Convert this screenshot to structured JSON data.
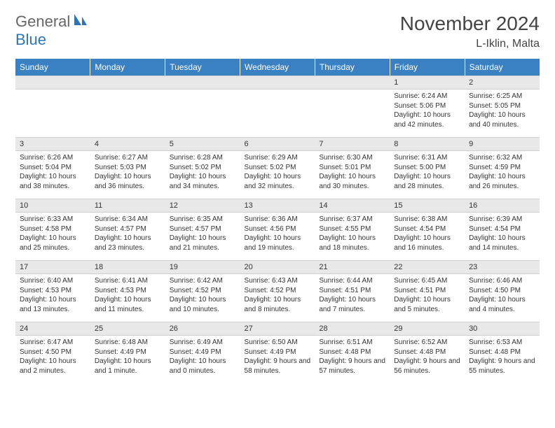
{
  "logo": {
    "text_general": "General",
    "text_blue": "Blue"
  },
  "header": {
    "month_title": "November 2024",
    "location": "L-Iklin, Malta"
  },
  "colors": {
    "header_bg": "#3a81c4",
    "header_text": "#ffffff",
    "daybar_bg": "#e8e8e8",
    "daybar_border": "#cfcfcf",
    "body_text": "#333333",
    "logo_blue": "#2f75b5",
    "page_bg": "#ffffff"
  },
  "weekdays": [
    "Sunday",
    "Monday",
    "Tuesday",
    "Wednesday",
    "Thursday",
    "Friday",
    "Saturday"
  ],
  "weeks": [
    [
      {
        "num": "",
        "sunrise": "",
        "sunset": "",
        "daylight": ""
      },
      {
        "num": "",
        "sunrise": "",
        "sunset": "",
        "daylight": ""
      },
      {
        "num": "",
        "sunrise": "",
        "sunset": "",
        "daylight": ""
      },
      {
        "num": "",
        "sunrise": "",
        "sunset": "",
        "daylight": ""
      },
      {
        "num": "",
        "sunrise": "",
        "sunset": "",
        "daylight": ""
      },
      {
        "num": "1",
        "sunrise": "Sunrise: 6:24 AM",
        "sunset": "Sunset: 5:06 PM",
        "daylight": "Daylight: 10 hours and 42 minutes."
      },
      {
        "num": "2",
        "sunrise": "Sunrise: 6:25 AM",
        "sunset": "Sunset: 5:05 PM",
        "daylight": "Daylight: 10 hours and 40 minutes."
      }
    ],
    [
      {
        "num": "3",
        "sunrise": "Sunrise: 6:26 AM",
        "sunset": "Sunset: 5:04 PM",
        "daylight": "Daylight: 10 hours and 38 minutes."
      },
      {
        "num": "4",
        "sunrise": "Sunrise: 6:27 AM",
        "sunset": "Sunset: 5:03 PM",
        "daylight": "Daylight: 10 hours and 36 minutes."
      },
      {
        "num": "5",
        "sunrise": "Sunrise: 6:28 AM",
        "sunset": "Sunset: 5:02 PM",
        "daylight": "Daylight: 10 hours and 34 minutes."
      },
      {
        "num": "6",
        "sunrise": "Sunrise: 6:29 AM",
        "sunset": "Sunset: 5:02 PM",
        "daylight": "Daylight: 10 hours and 32 minutes."
      },
      {
        "num": "7",
        "sunrise": "Sunrise: 6:30 AM",
        "sunset": "Sunset: 5:01 PM",
        "daylight": "Daylight: 10 hours and 30 minutes."
      },
      {
        "num": "8",
        "sunrise": "Sunrise: 6:31 AM",
        "sunset": "Sunset: 5:00 PM",
        "daylight": "Daylight: 10 hours and 28 minutes."
      },
      {
        "num": "9",
        "sunrise": "Sunrise: 6:32 AM",
        "sunset": "Sunset: 4:59 PM",
        "daylight": "Daylight: 10 hours and 26 minutes."
      }
    ],
    [
      {
        "num": "10",
        "sunrise": "Sunrise: 6:33 AM",
        "sunset": "Sunset: 4:58 PM",
        "daylight": "Daylight: 10 hours and 25 minutes."
      },
      {
        "num": "11",
        "sunrise": "Sunrise: 6:34 AM",
        "sunset": "Sunset: 4:57 PM",
        "daylight": "Daylight: 10 hours and 23 minutes."
      },
      {
        "num": "12",
        "sunrise": "Sunrise: 6:35 AM",
        "sunset": "Sunset: 4:57 PM",
        "daylight": "Daylight: 10 hours and 21 minutes."
      },
      {
        "num": "13",
        "sunrise": "Sunrise: 6:36 AM",
        "sunset": "Sunset: 4:56 PM",
        "daylight": "Daylight: 10 hours and 19 minutes."
      },
      {
        "num": "14",
        "sunrise": "Sunrise: 6:37 AM",
        "sunset": "Sunset: 4:55 PM",
        "daylight": "Daylight: 10 hours and 18 minutes."
      },
      {
        "num": "15",
        "sunrise": "Sunrise: 6:38 AM",
        "sunset": "Sunset: 4:54 PM",
        "daylight": "Daylight: 10 hours and 16 minutes."
      },
      {
        "num": "16",
        "sunrise": "Sunrise: 6:39 AM",
        "sunset": "Sunset: 4:54 PM",
        "daylight": "Daylight: 10 hours and 14 minutes."
      }
    ],
    [
      {
        "num": "17",
        "sunrise": "Sunrise: 6:40 AM",
        "sunset": "Sunset: 4:53 PM",
        "daylight": "Daylight: 10 hours and 13 minutes."
      },
      {
        "num": "18",
        "sunrise": "Sunrise: 6:41 AM",
        "sunset": "Sunset: 4:53 PM",
        "daylight": "Daylight: 10 hours and 11 minutes."
      },
      {
        "num": "19",
        "sunrise": "Sunrise: 6:42 AM",
        "sunset": "Sunset: 4:52 PM",
        "daylight": "Daylight: 10 hours and 10 minutes."
      },
      {
        "num": "20",
        "sunrise": "Sunrise: 6:43 AM",
        "sunset": "Sunset: 4:52 PM",
        "daylight": "Daylight: 10 hours and 8 minutes."
      },
      {
        "num": "21",
        "sunrise": "Sunrise: 6:44 AM",
        "sunset": "Sunset: 4:51 PM",
        "daylight": "Daylight: 10 hours and 7 minutes."
      },
      {
        "num": "22",
        "sunrise": "Sunrise: 6:45 AM",
        "sunset": "Sunset: 4:51 PM",
        "daylight": "Daylight: 10 hours and 5 minutes."
      },
      {
        "num": "23",
        "sunrise": "Sunrise: 6:46 AM",
        "sunset": "Sunset: 4:50 PM",
        "daylight": "Daylight: 10 hours and 4 minutes."
      }
    ],
    [
      {
        "num": "24",
        "sunrise": "Sunrise: 6:47 AM",
        "sunset": "Sunset: 4:50 PM",
        "daylight": "Daylight: 10 hours and 2 minutes."
      },
      {
        "num": "25",
        "sunrise": "Sunrise: 6:48 AM",
        "sunset": "Sunset: 4:49 PM",
        "daylight": "Daylight: 10 hours and 1 minute."
      },
      {
        "num": "26",
        "sunrise": "Sunrise: 6:49 AM",
        "sunset": "Sunset: 4:49 PM",
        "daylight": "Daylight: 10 hours and 0 minutes."
      },
      {
        "num": "27",
        "sunrise": "Sunrise: 6:50 AM",
        "sunset": "Sunset: 4:49 PM",
        "daylight": "Daylight: 9 hours and 58 minutes."
      },
      {
        "num": "28",
        "sunrise": "Sunrise: 6:51 AM",
        "sunset": "Sunset: 4:48 PM",
        "daylight": "Daylight: 9 hours and 57 minutes."
      },
      {
        "num": "29",
        "sunrise": "Sunrise: 6:52 AM",
        "sunset": "Sunset: 4:48 PM",
        "daylight": "Daylight: 9 hours and 56 minutes."
      },
      {
        "num": "30",
        "sunrise": "Sunrise: 6:53 AM",
        "sunset": "Sunset: 4:48 PM",
        "daylight": "Daylight: 9 hours and 55 minutes."
      }
    ]
  ]
}
